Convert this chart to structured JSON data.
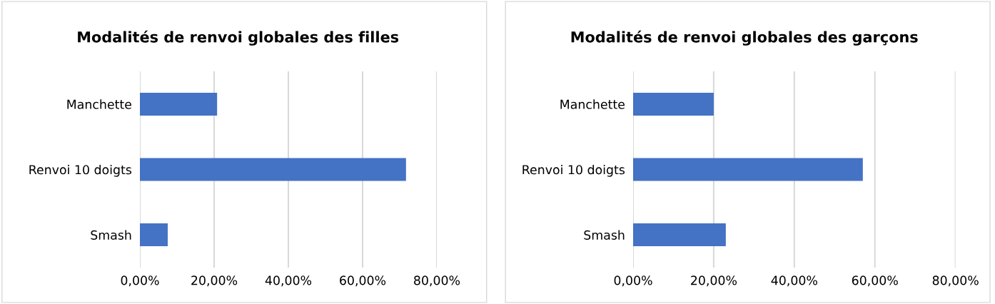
{
  "chart_data": [
    {
      "type": "bar",
      "orientation": "horizontal",
      "title": "Modalités de renvoi globales des filles",
      "categories": [
        "Manchette",
        "Renvoi 10 doigts",
        "Smash"
      ],
      "values": [
        20.8,
        71.7,
        7.5
      ],
      "color": "#4472c4",
      "xlim": [
        0,
        80
      ],
      "xticks": [
        {
          "value": 0,
          "label": "0,00%"
        },
        {
          "value": 20,
          "label": "20,00%"
        },
        {
          "value": 40,
          "label": "40,00%"
        },
        {
          "value": 60,
          "label": "60,00%"
        },
        {
          "value": 80,
          "label": "80,00%"
        }
      ],
      "grid": "x",
      "legend": false
    },
    {
      "type": "bar",
      "orientation": "horizontal",
      "title": "Modalités de renvoi globales des garçons",
      "categories": [
        "Manchette",
        "Renvoi 10 doigts",
        "Smash"
      ],
      "values": [
        20,
        57,
        23
      ],
      "color": "#4472c4",
      "xlim": [
        0,
        80
      ],
      "xticks": [
        {
          "value": 0,
          "label": "0,00%"
        },
        {
          "value": 20,
          "label": "20,00%"
        },
        {
          "value": 40,
          "label": "40,00%"
        },
        {
          "value": 60,
          "label": "60,00%"
        },
        {
          "value": 80,
          "label": "80,00%"
        }
      ],
      "grid": "x",
      "legend": false
    }
  ]
}
